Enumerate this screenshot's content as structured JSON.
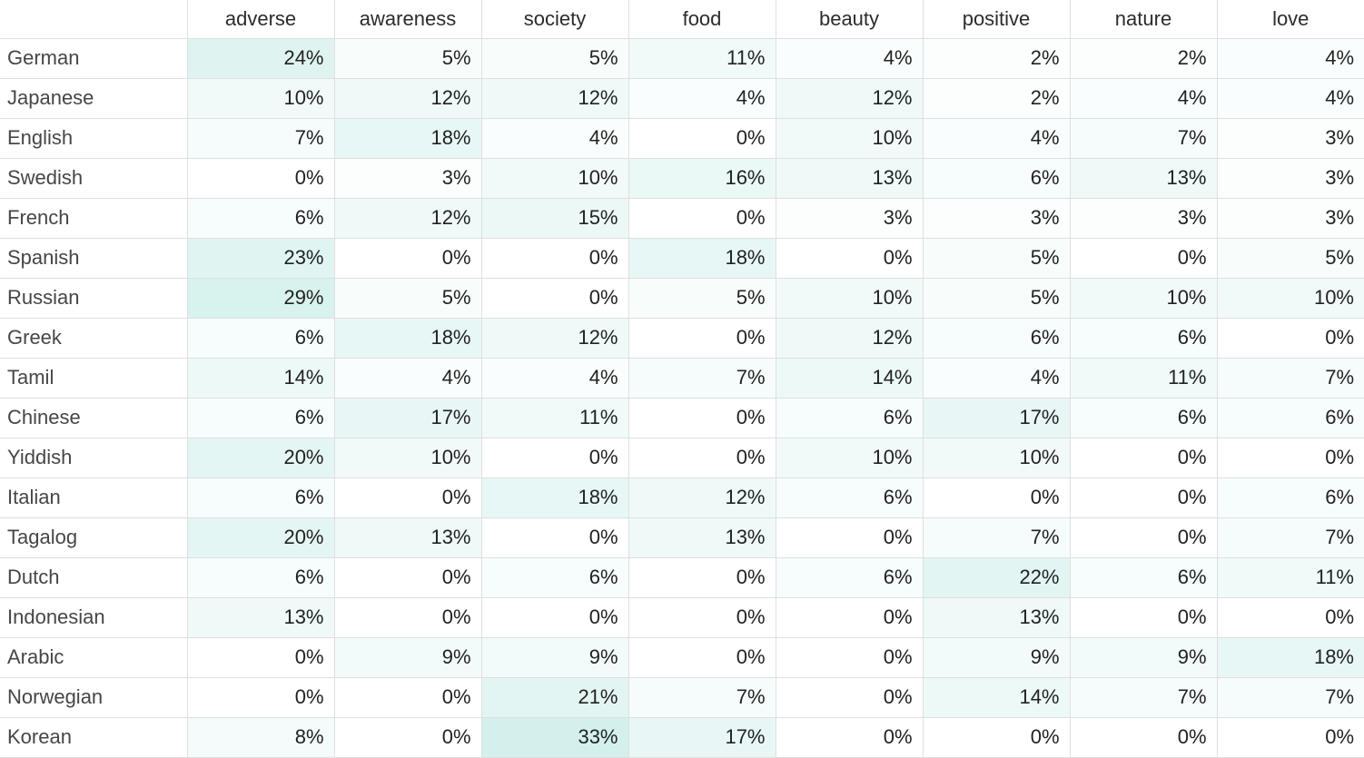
{
  "chart_data": {
    "type": "heatmap",
    "title": "",
    "unit": "%",
    "columns": [
      "adverse",
      "awareness",
      "society",
      "food",
      "beauty",
      "positive",
      "nature",
      "love"
    ],
    "rows": [
      "German",
      "Japanese",
      "English",
      "Swedish",
      "French",
      "Spanish",
      "Russian",
      "Greek",
      "Tamil",
      "Chinese",
      "Yiddish",
      "Italian",
      "Tagalog",
      "Dutch",
      "Indonesian",
      "Arabic",
      "Norwegian",
      "Korean"
    ],
    "values": [
      [
        24,
        5,
        5,
        11,
        4,
        2,
        2,
        4
      ],
      [
        10,
        12,
        12,
        4,
        12,
        2,
        4,
        4
      ],
      [
        7,
        18,
        4,
        0,
        10,
        4,
        7,
        3
      ],
      [
        0,
        3,
        10,
        16,
        13,
        6,
        13,
        3
      ],
      [
        6,
        12,
        15,
        0,
        3,
        3,
        3,
        3
      ],
      [
        23,
        0,
        0,
        18,
        0,
        5,
        0,
        5
      ],
      [
        29,
        5,
        0,
        5,
        10,
        5,
        10,
        10
      ],
      [
        6,
        18,
        12,
        0,
        12,
        6,
        6,
        0
      ],
      [
        14,
        4,
        4,
        7,
        14,
        4,
        11,
        7
      ],
      [
        6,
        17,
        11,
        0,
        6,
        17,
        6,
        6
      ],
      [
        20,
        10,
        0,
        0,
        10,
        10,
        0,
        0
      ],
      [
        6,
        0,
        18,
        12,
        6,
        0,
        0,
        6
      ],
      [
        20,
        13,
        0,
        13,
        0,
        7,
        0,
        7
      ],
      [
        6,
        0,
        6,
        0,
        6,
        22,
        6,
        11
      ],
      [
        13,
        0,
        0,
        0,
        0,
        13,
        0,
        0
      ],
      [
        0,
        9,
        9,
        0,
        0,
        9,
        9,
        18
      ],
      [
        0,
        0,
        21,
        7,
        0,
        14,
        7,
        7
      ],
      [
        8,
        0,
        33,
        17,
        0,
        0,
        0,
        0
      ]
    ],
    "value_range": [
      0,
      33
    ],
    "heat_min_color": "#ffffff",
    "heat_max_color": "#d3f0ec",
    "grid_color": "#dfdfdf",
    "corner_cell": ""
  }
}
